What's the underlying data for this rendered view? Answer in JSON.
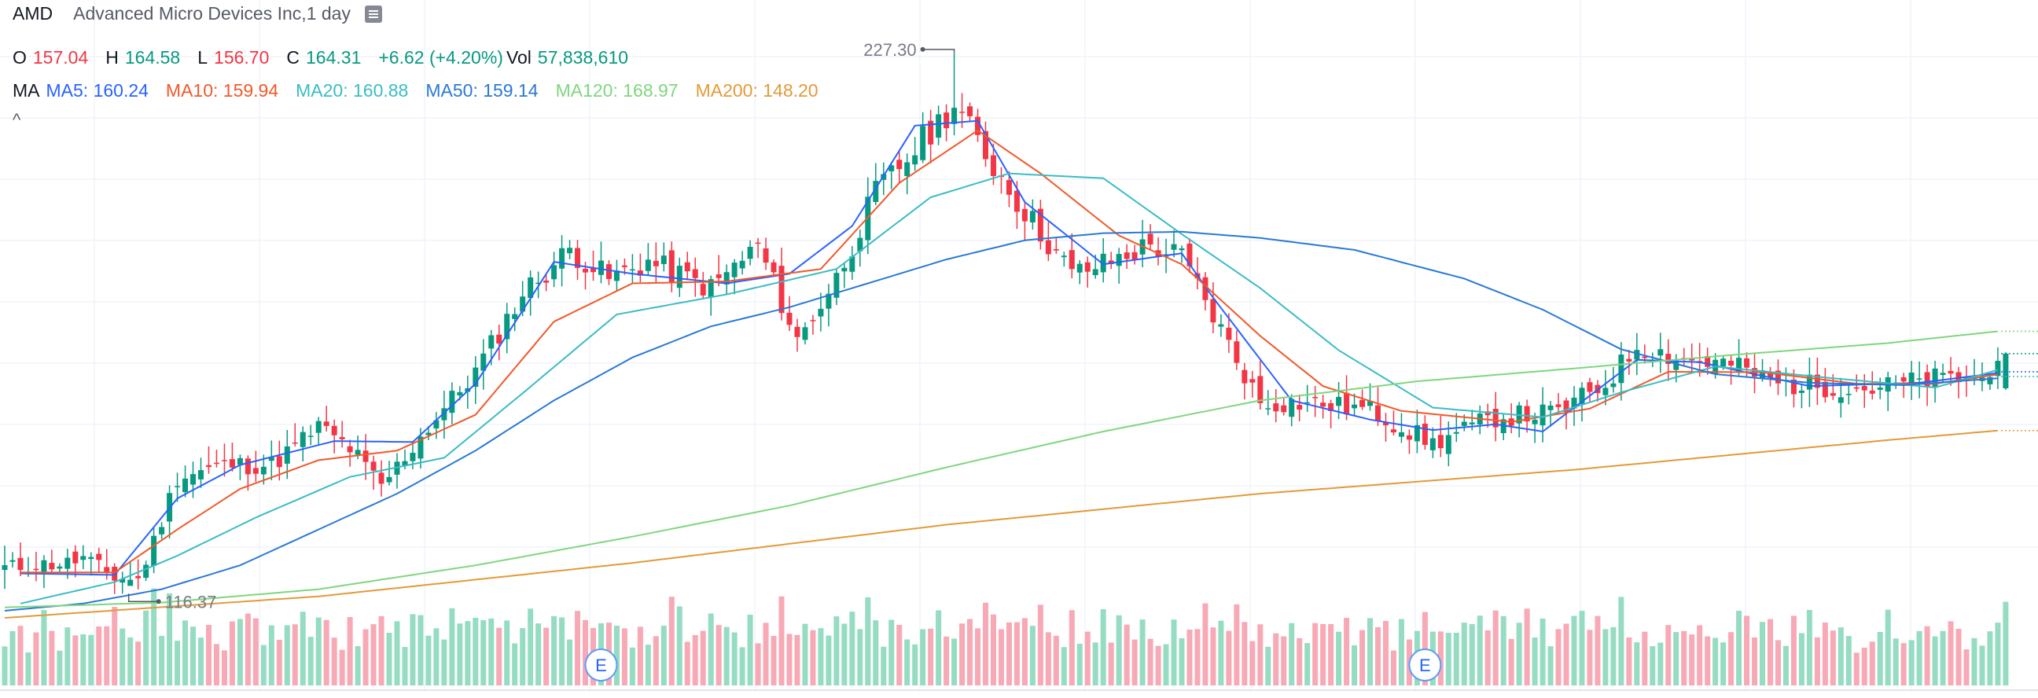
{
  "header": {
    "symbol": "AMD",
    "subtitle": "Advanced Micro Devices Inc,1 day",
    "collapse_icon": "list-icon"
  },
  "ohlc": {
    "o_label": "O",
    "o": "157.04",
    "h_label": "H",
    "h": "164.58",
    "l_label": "L",
    "l": "156.70",
    "c_label": "C",
    "c": "164.31",
    "change": "+6.62 (+4.20%)",
    "vol_label": "Vol",
    "vol": "57,838,610"
  },
  "ma": {
    "label": "MA",
    "ma5": "MA5: 160.24",
    "ma10": "MA10: 159.94",
    "ma20": "MA20: 160.88",
    "ma50": "MA50: 159.14",
    "ma120": "MA120: 168.97",
    "ma200": "MA200: 148.20",
    "collapse_glyph": "^"
  },
  "colors": {
    "up": "#089981",
    "down": "#f23645",
    "up_vol": "#95dcc2",
    "down_vol": "#f7a9b5",
    "ma5": "#2962ff",
    "ma10": "#f0592a",
    "ma20": "#3bbcc4",
    "ma50": "#2979d6",
    "ma120": "#7fd67f",
    "ma200": "#e39a3a"
  },
  "chart_data": {
    "type": "candlestick",
    "symbol": "AMD",
    "interval": "1 day",
    "high_marker": "227.30",
    "low_marker": "116.37",
    "earnings_marker": "E",
    "earnings_bars": [
      76,
      181
    ],
    "ylim": [
      110,
      235
    ],
    "anchors": [
      [
        0,
        119.5
      ],
      [
        8,
        120.5
      ],
      [
        10,
        121.5
      ],
      [
        14,
        117.5
      ],
      [
        17,
        117
      ],
      [
        19,
        125
      ],
      [
        22,
        138.5
      ],
      [
        28,
        141
      ],
      [
        34,
        141
      ],
      [
        40,
        149
      ],
      [
        44,
        144.5
      ],
      [
        48,
        136.5
      ],
      [
        54,
        149
      ],
      [
        60,
        160.5
      ],
      [
        66,
        177
      ],
      [
        72,
        186
      ],
      [
        77,
        180
      ],
      [
        82,
        183.5
      ],
      [
        90,
        178
      ],
      [
        96,
        187
      ],
      [
        101,
        167
      ],
      [
        106,
        180
      ],
      [
        111,
        198
      ],
      [
        116,
        207
      ],
      [
        121,
        216.5
      ],
      [
        125,
        206
      ],
      [
        130,
        194
      ],
      [
        136,
        181
      ],
      [
        140,
        183
      ],
      [
        146,
        187
      ],
      [
        150,
        184.5
      ],
      [
        160,
        154
      ],
      [
        166,
        154
      ],
      [
        174,
        152.5
      ],
      [
        182,
        145.5
      ],
      [
        190,
        151
      ],
      [
        198,
        152
      ],
      [
        204,
        158
      ],
      [
        208,
        166
      ],
      [
        214,
        163
      ],
      [
        220,
        162
      ],
      [
        226,
        158
      ],
      [
        232,
        157.5
      ],
      [
        238,
        157
      ],
      [
        246,
        159
      ],
      [
        252,
        159
      ],
      [
        254,
        164.3
      ]
    ],
    "ma": {
      "MA5": [
        [
          2,
          118.3
        ],
        [
          14,
          118
        ],
        [
          22,
          134
        ],
        [
          30,
          141
        ],
        [
          42,
          146
        ],
        [
          52,
          145.8
        ],
        [
          60,
          158
        ],
        [
          70,
          183.5
        ],
        [
          80,
          181
        ],
        [
          92,
          179
        ],
        [
          100,
          181
        ],
        [
          108,
          191
        ],
        [
          116,
          212
        ],
        [
          124,
          213
        ],
        [
          130,
          196
        ],
        [
          140,
          183
        ],
        [
          150,
          185.3
        ],
        [
          154,
          176
        ],
        [
          164,
          154.5
        ],
        [
          174,
          150.5
        ],
        [
          182,
          148.3
        ],
        [
          190,
          149.5
        ],
        [
          196,
          148
        ],
        [
          208,
          163
        ],
        [
          216,
          162.5
        ],
        [
          230,
          157.5
        ],
        [
          244,
          158.2
        ],
        [
          254,
          160.24
        ]
      ],
      "MA10": [
        [
          2,
          118.5
        ],
        [
          14,
          118.5
        ],
        [
          22,
          127.5
        ],
        [
          30,
          136
        ],
        [
          40,
          142
        ],
        [
          50,
          144
        ],
        [
          60,
          151.5
        ],
        [
          70,
          171
        ],
        [
          80,
          179
        ],
        [
          92,
          179.4
        ],
        [
          104,
          182
        ],
        [
          114,
          200
        ],
        [
          124,
          211
        ],
        [
          132,
          202
        ],
        [
          142,
          189
        ],
        [
          150,
          183
        ],
        [
          160,
          168
        ],
        [
          168,
          157.5
        ],
        [
          178,
          152.3
        ],
        [
          192,
          150
        ],
        [
          202,
          152.8
        ],
        [
          212,
          160.5
        ],
        [
          224,
          160.4
        ],
        [
          236,
          158
        ],
        [
          246,
          158
        ],
        [
          254,
          159.94
        ]
      ],
      "MA20": [
        [
          2,
          112
        ],
        [
          14,
          116.5
        ],
        [
          22,
          122
        ],
        [
          32,
          130
        ],
        [
          44,
          138.5
        ],
        [
          56,
          142.5
        ],
        [
          66,
          156
        ],
        [
          78,
          172.5
        ],
        [
          92,
          176.7
        ],
        [
          106,
          182
        ],
        [
          118,
          197
        ],
        [
          128,
          202
        ],
        [
          140,
          201
        ],
        [
          150,
          189.3
        ],
        [
          160,
          178
        ],
        [
          170,
          165
        ],
        [
          182,
          153
        ],
        [
          196,
          151
        ],
        [
          206,
          156.2
        ],
        [
          218,
          161.6
        ],
        [
          232,
          159.3
        ],
        [
          246,
          157.2
        ],
        [
          254,
          160.88
        ]
      ],
      "MA50": [
        [
          0,
          110.5
        ],
        [
          10,
          112
        ],
        [
          20,
          115
        ],
        [
          30,
          120
        ],
        [
          40,
          127.5
        ],
        [
          50,
          135
        ],
        [
          60,
          144
        ],
        [
          70,
          154.5
        ],
        [
          80,
          163.5
        ],
        [
          90,
          170
        ],
        [
          100,
          174
        ],
        [
          110,
          179
        ],
        [
          120,
          184
        ],
        [
          130,
          188
        ],
        [
          140,
          189.5
        ],
        [
          150,
          189.8
        ],
        [
          160,
          188.5
        ],
        [
          172,
          186
        ],
        [
          186,
          180
        ],
        [
          196,
          173.5
        ],
        [
          206,
          165.2
        ],
        [
          218,
          160
        ],
        [
          230,
          158.2
        ],
        [
          242,
          157.7
        ],
        [
          254,
          159.14
        ]
      ],
      "MA120": [
        [
          0,
          111.2
        ],
        [
          20,
          112.2
        ],
        [
          40,
          115
        ],
        [
          60,
          120
        ],
        [
          80,
          126
        ],
        [
          100,
          132.5
        ],
        [
          120,
          140.5
        ],
        [
          140,
          148
        ],
        [
          160,
          154.5
        ],
        [
          180,
          158.5
        ],
        [
          200,
          161.2
        ],
        [
          220,
          164
        ],
        [
          240,
          166.5
        ],
        [
          254,
          168.97
        ]
      ],
      "MA200": [
        [
          0,
          109
        ],
        [
          40,
          113.5
        ],
        [
          80,
          120.5
        ],
        [
          120,
          128.5
        ],
        [
          160,
          135
        ],
        [
          200,
          140
        ],
        [
          240,
          146.2
        ],
        [
          254,
          148.2
        ]
      ]
    }
  }
}
